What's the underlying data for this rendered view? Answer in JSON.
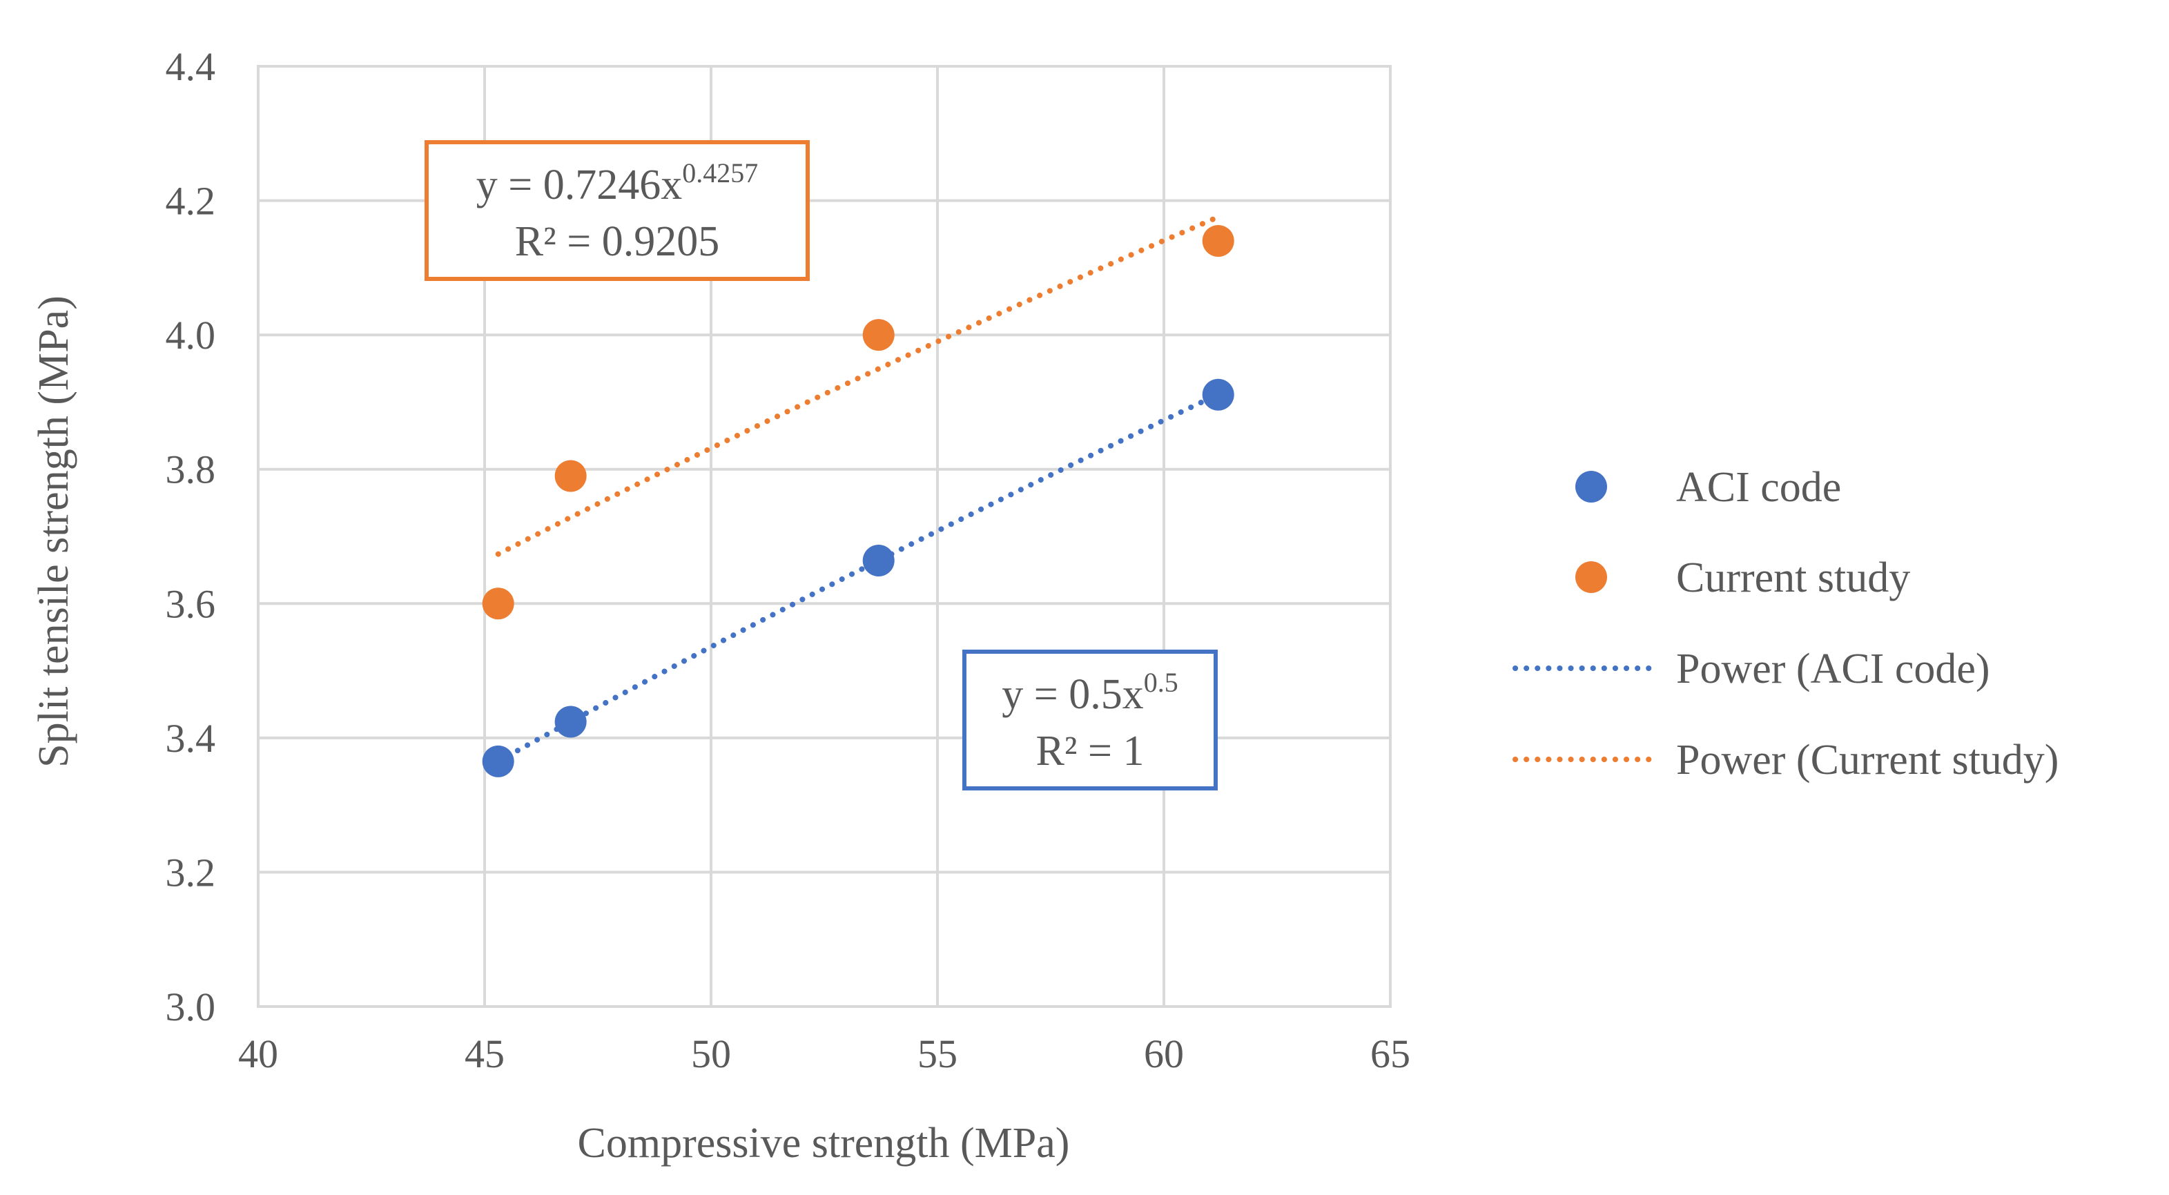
{
  "chart_data": {
    "type": "scatter",
    "xlabel": "Compressive strength (MPa)",
    "ylabel": "Split tensile strength (MPa)",
    "xlim": [
      40,
      65
    ],
    "ylim": [
      3.0,
      4.4
    ],
    "x_ticks": [
      "40",
      "45",
      "50",
      "55",
      "60",
      "65"
    ],
    "y_ticks": [
      "3.0",
      "3.2",
      "3.4",
      "3.6",
      "3.8",
      "4.0",
      "4.2",
      "4.4"
    ],
    "grid": true,
    "legend_position": "right",
    "series": [
      {
        "name": "ACI code",
        "color": "#4472C4",
        "marker": "circle",
        "points": [
          [
            45.3,
            3.365
          ],
          [
            46.9,
            3.424
          ],
          [
            53.7,
            3.664
          ],
          [
            61.2,
            3.911
          ]
        ]
      },
      {
        "name": "Current study",
        "color": "#ED7D31",
        "marker": "circle",
        "points": [
          [
            45.3,
            3.6
          ],
          [
            46.9,
            3.79
          ],
          [
            53.7,
            4.0
          ],
          [
            61.2,
            4.14
          ]
        ]
      }
    ],
    "trendlines": [
      {
        "name": "Power (ACI code)",
        "color": "#4472C4",
        "style": "dotted",
        "coef": 0.5,
        "exp": 0.5,
        "x_range": [
          45.3,
          61.2
        ],
        "label_prefix": "y = 0.5x",
        "label_exp": "0.5",
        "r2": "R² = 1"
      },
      {
        "name": "Power (Current study)",
        "color": "#ED7D31",
        "style": "dotted",
        "coef": 0.7246,
        "exp": 0.4257,
        "x_range": [
          45.3,
          61.2
        ],
        "label_prefix": "y = 0.7246x",
        "label_exp": "0.4257",
        "r2": "R² = 0.9205"
      }
    ],
    "legend": [
      "ACI code",
      "Current study",
      "Power (ACI code)",
      "Power (Current study)"
    ]
  }
}
